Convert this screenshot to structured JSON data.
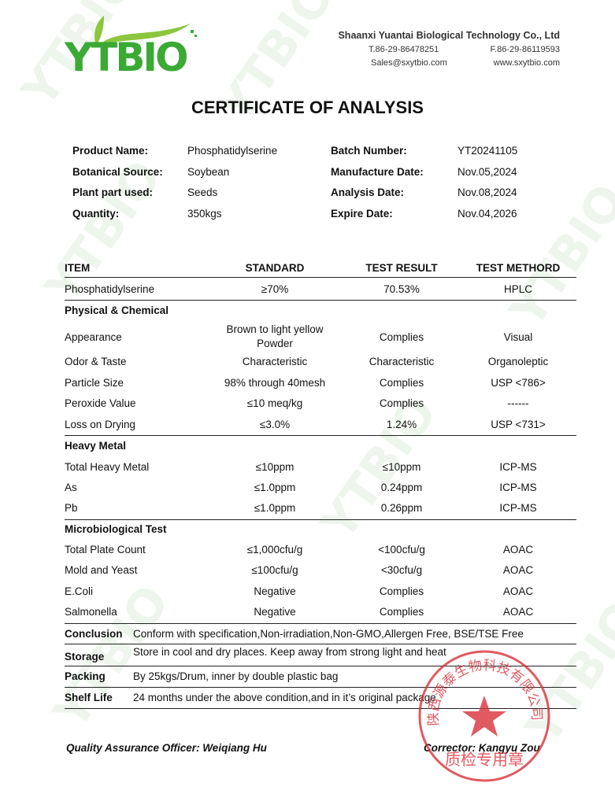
{
  "logo": {
    "text": "YTBIO",
    "brand_color": "#3aaa35",
    "accent_color": "#8cc63f"
  },
  "company": {
    "name": "Shaanxi Yuantai Biological Technology Co., Ltd",
    "tel": "T.86-29-86478251",
    "fax": "F.86-29-86119593",
    "email": "Sales@sxytbio.com",
    "website": "www.sxytbio.com"
  },
  "title": "CERTIFICATE OF ANALYSIS",
  "info": {
    "left": [
      {
        "label": "Product Name:",
        "value": "Phosphatidylserine"
      },
      {
        "label": "Botanical Source:",
        "value": "Soybean"
      },
      {
        "label": "Plant part used:",
        "value": "Seeds"
      },
      {
        "label": "Quantity:",
        "value": "350kgs"
      }
    ],
    "right": [
      {
        "label": "Batch Number:",
        "value": "YT20241105"
      },
      {
        "label": "Manufacture Date:",
        "value": "Nov.05,2024"
      },
      {
        "label": "Analysis Date:",
        "value": "Nov.08,2024"
      },
      {
        "label": "Expire Date:",
        "value": "Nov.04,2026"
      }
    ]
  },
  "table": {
    "headers": [
      "ITEM",
      "STANDARD",
      "TEST RESULT",
      "TEST METHORD"
    ],
    "rows": [
      {
        "cells": [
          "Phosphatidylserine",
          "≥70%",
          "70.53%",
          "HPLC"
        ]
      },
      {
        "section": "Physical & Chemical"
      },
      {
        "cells": [
          "Appearance",
          "Brown to light yellow\nPowder",
          "Complies",
          "Visual"
        ]
      },
      {
        "cells": [
          "Odor & Taste",
          "Characteristic",
          "Characteristic",
          "Organoleptic"
        ]
      },
      {
        "cells": [
          "Particle Size",
          "98% through 40mesh",
          "Complies",
          "USP <786>"
        ]
      },
      {
        "cells": [
          "Peroxide Value",
          "≤10 meq/kg",
          "Complies",
          "------"
        ]
      },
      {
        "cells": [
          "Loss on Drying",
          "≤3.0%",
          "1.24%",
          "USP <731>"
        ]
      },
      {
        "section": "Heavy Metal"
      },
      {
        "cells": [
          "Total Heavy Metal",
          "≤10ppm",
          "≤10ppm",
          "ICP-MS"
        ]
      },
      {
        "cells": [
          "As",
          "≤1.0ppm",
          "0.24ppm",
          "ICP-MS"
        ]
      },
      {
        "cells": [
          "Pb",
          "≤1.0ppm",
          "0.26ppm",
          "ICP-MS"
        ]
      },
      {
        "section": "Microbiological Test"
      },
      {
        "cells": [
          "Total Plate Count",
          "≤1,000cfu/g",
          "<100cfu/g",
          "AOAC"
        ]
      },
      {
        "cells": [
          "Mold and Yeast",
          "≤100cfu/g",
          "<30cfu/g",
          "AOAC"
        ]
      },
      {
        "cells": [
          "E.Coli",
          "Negative",
          "Complies",
          "AOAC"
        ]
      },
      {
        "cells": [
          "Salmonella",
          "Negative",
          "Complies",
          "AOAC"
        ]
      }
    ],
    "footer": [
      {
        "label": "Conclusion",
        "value": "Conform with specification,Non-irradiation,Non-GMO,Allergen Free, BSE/TSE Free"
      },
      {
        "label": "Storage",
        "value": "Store in cool and dry places. Keep away from strong light and heat"
      },
      {
        "label": "Packing",
        "value": "By 25kgs/Drum, inner by double plastic bag"
      },
      {
        "label": "Shelf Life",
        "value": "24 months under the above condition,and in it’s original package"
      }
    ]
  },
  "signatures": {
    "qa": "Quality Assurance Officer: Weiqiang Hu",
    "corrector": "Corrector: Kangyu Zou"
  },
  "stamp": {
    "top_text": "陕西源泰生物科技有限公司",
    "bottom_text": "质检专用章",
    "color": "#d9323a"
  }
}
